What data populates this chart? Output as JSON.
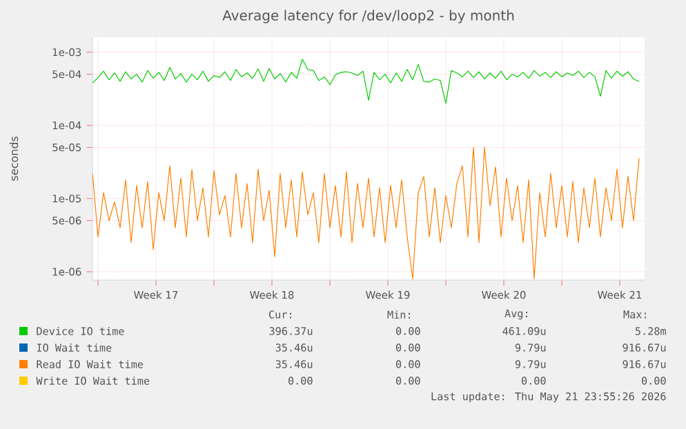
{
  "chart_data": {
    "type": "line",
    "title": "Average latency for /dev/loop2 - by month",
    "ylabel": "seconds",
    "x": [
      "2026-04-18T16:00",
      "2026-04-19T00:00",
      "2026-04-19T08:00",
      "2026-04-19T16:00",
      "2026-04-20T00:00",
      "2026-04-20T08:00",
      "2026-04-20T16:00",
      "2026-04-21T00:00",
      "2026-04-21T08:00",
      "2026-04-21T16:00",
      "2026-04-22T00:00",
      "2026-04-22T08:00",
      "2026-04-22T16:00",
      "2026-04-23T00:00",
      "2026-04-23T08:00",
      "2026-04-23T16:00",
      "2026-04-24T00:00",
      "2026-04-24T08:00",
      "2026-04-24T16:00",
      "2026-04-25T00:00",
      "2026-04-25T08:00",
      "2026-04-25T16:00",
      "2026-04-26T00:00",
      "2026-04-26T08:00",
      "2026-04-26T16:00",
      "2026-04-27T00:00",
      "2026-04-27T08:00",
      "2026-04-27T16:00",
      "2026-04-28T00:00",
      "2026-04-28T08:00",
      "2026-04-28T16:00",
      "2026-04-29T00:00",
      "2026-04-29T08:00",
      "2026-04-29T16:00",
      "2026-04-30T00:00",
      "2026-04-30T08:00",
      "2026-04-30T16:00",
      "2026-05-01T00:00",
      "2026-05-01T08:00",
      "2026-05-01T16:00",
      "2026-05-02T00:00",
      "2026-05-02T08:00",
      "2026-05-02T16:00",
      "2026-05-03T00:00",
      "2026-05-03T08:00",
      "2026-05-03T16:00",
      "2026-05-04T00:00",
      "2026-05-04T08:00",
      "2026-05-04T16:00",
      "2026-05-05T00:00",
      "2026-05-05T08:00",
      "2026-05-05T16:00",
      "2026-05-06T00:00",
      "2026-05-06T08:00",
      "2026-05-06T16:00",
      "2026-05-07T00:00",
      "2026-05-07T08:00",
      "2026-05-07T16:00",
      "2026-05-08T00:00",
      "2026-05-08T08:00",
      "2026-05-08T16:00",
      "2026-05-09T00:00",
      "2026-05-09T08:00",
      "2026-05-09T16:00",
      "2026-05-10T00:00",
      "2026-05-10T08:00",
      "2026-05-10T16:00",
      "2026-05-11T00:00",
      "2026-05-11T08:00",
      "2026-05-11T16:00",
      "2026-05-12T00:00",
      "2026-05-12T08:00",
      "2026-05-12T16:00",
      "2026-05-13T00:00",
      "2026-05-13T08:00",
      "2026-05-13T16:00",
      "2026-05-14T00:00",
      "2026-05-14T08:00",
      "2026-05-14T16:00",
      "2026-05-15T00:00",
      "2026-05-15T08:00",
      "2026-05-15T16:00",
      "2026-05-16T00:00",
      "2026-05-16T08:00",
      "2026-05-16T16:00",
      "2026-05-17T00:00",
      "2026-05-17T08:00",
      "2026-05-17T16:00",
      "2026-05-18T00:00",
      "2026-05-18T08:00",
      "2026-05-18T16:00",
      "2026-05-19T00:00",
      "2026-05-19T08:00",
      "2026-05-19T16:00",
      "2026-05-20T00:00",
      "2026-05-20T08:00",
      "2026-05-20T16:00",
      "2026-05-21T00:00",
      "2026-05-21T08:00",
      "2026-05-21T16:00"
    ],
    "series": [
      {
        "name": "Device IO time",
        "color": "#00cc00",
        "values": [
          0.00038,
          0.00045,
          0.00055,
          0.00042,
          0.00052,
          0.0004,
          0.00054,
          0.00043,
          0.0005,
          0.00039,
          0.00056,
          0.00044,
          0.00053,
          0.00041,
          0.00062,
          0.00043,
          0.00051,
          0.00039,
          0.0005,
          0.00042,
          0.00055,
          0.0004,
          0.00048,
          0.00045,
          0.00054,
          0.00041,
          0.00058,
          0.00046,
          0.00052,
          0.00044,
          0.00059,
          0.0004,
          0.0006,
          0.00043,
          0.00051,
          0.00039,
          0.00053,
          0.00044,
          0.0008,
          0.00058,
          0.00056,
          0.00041,
          0.00046,
          0.00036,
          0.00049,
          0.00053,
          0.00054,
          0.00052,
          0.00048,
          0.00055,
          0.00022,
          0.00053,
          0.00042,
          0.0005,
          0.00038,
          0.00052,
          0.0004,
          0.00058,
          0.00042,
          0.00068,
          0.0004,
          0.00039,
          0.00043,
          0.00041,
          0.0002,
          0.00056,
          0.00052,
          0.00046,
          0.00055,
          0.00045,
          0.00054,
          0.00043,
          0.00052,
          0.00044,
          0.00055,
          0.00042,
          0.0005,
          0.00046,
          0.00053,
          0.00044,
          0.00056,
          0.00047,
          0.00053,
          0.00045,
          0.00054,
          0.00046,
          0.00052,
          0.00048,
          0.00055,
          0.00045,
          0.00053,
          0.00046,
          0.00025,
          0.00056,
          0.00044,
          0.00055,
          0.00047,
          0.00054,
          0.00043,
          0.000396
        ]
      },
      {
        "name": "IO Wait time",
        "color": "#0066b3",
        "values": [
          null,
          null,
          null,
          null,
          null,
          null,
          null,
          null,
          null,
          null,
          null,
          null,
          null,
          null,
          null,
          null,
          null,
          null,
          null,
          null,
          null,
          null,
          null,
          null,
          null,
          null,
          null,
          null,
          null,
          null,
          null,
          null,
          null,
          null,
          null,
          null,
          null,
          null,
          null,
          null,
          null,
          null,
          null,
          null,
          null,
          null,
          null,
          null,
          null,
          null,
          null,
          null,
          null,
          null,
          null,
          null,
          null,
          null,
          null,
          null,
          null,
          null,
          null,
          null,
          null,
          null,
          null,
          null,
          null,
          null,
          null,
          null,
          null,
          null,
          null,
          null,
          null,
          null,
          null,
          null,
          null,
          null,
          null,
          null,
          null,
          null,
          null,
          null,
          null,
          null,
          null,
          null,
          null,
          null,
          null,
          null,
          null,
          null,
          null,
          null
        ]
      },
      {
        "name": "Read IO Wait time",
        "color": "#ff8000",
        "values": [
          2.2e-05,
          3e-06,
          1.2e-05,
          5e-06,
          9e-06,
          4e-06,
          1.8e-05,
          2.5e-06,
          1.5e-05,
          4e-06,
          1.7e-05,
          2e-06,
          1.2e-05,
          5e-06,
          2.8e-05,
          4e-06,
          1.9e-05,
          3e-06,
          2.5e-05,
          5e-06,
          1.4e-05,
          3e-06,
          2.4e-05,
          6e-06,
          1.1e-05,
          3e-06,
          2.2e-05,
          4e-06,
          1.6e-05,
          2.5e-06,
          2.5e-05,
          5e-06,
          1.3e-05,
          1.6e-06,
          2.2e-05,
          4e-06,
          1.8e-05,
          3e-06,
          2.3e-05,
          6e-06,
          1.2e-05,
          2.5e-06,
          2.2e-05,
          4e-06,
          1.5e-05,
          3e-06,
          2.3e-05,
          2.5e-06,
          1.6e-05,
          4e-06,
          1.9e-05,
          3e-06,
          1.4e-05,
          2.5e-06,
          1.5e-05,
          4e-06,
          1.8e-05,
          3e-06,
          8e-07,
          1.2e-05,
          2e-05,
          3e-06,
          1.4e-05,
          2.5e-06,
          1.1e-05,
          4e-06,
          1.6e-05,
          2.8e-05,
          3e-06,
          5e-05,
          2.5e-06,
          5e-05,
          8e-06,
          2.7e-05,
          3e-06,
          1.9e-05,
          5e-06,
          1.5e-05,
          2.5e-06,
          1.8e-05,
          8e-07,
          1.2e-05,
          3e-06,
          2.2e-05,
          4e-06,
          1.5e-05,
          3e-06,
          1.7e-05,
          2.5e-06,
          1.4e-05,
          4e-06,
          1.9e-05,
          3e-06,
          1.4e-05,
          5e-06,
          2.5e-05,
          4e-06,
          2e-05,
          5e-06,
          3.546e-05
        ]
      },
      {
        "name": "Write IO Wait time",
        "color": "#ffcc00",
        "values": [
          null,
          null,
          null,
          null,
          null,
          null,
          null,
          null,
          null,
          null,
          null,
          null,
          null,
          null,
          null,
          null,
          null,
          null,
          null,
          null,
          null,
          null,
          null,
          null,
          null,
          null,
          null,
          null,
          null,
          null,
          null,
          null,
          null,
          null,
          null,
          null,
          null,
          null,
          null,
          null,
          null,
          null,
          null,
          null,
          null,
          null,
          null,
          null,
          null,
          null,
          null,
          null,
          null,
          null,
          null,
          null,
          null,
          null,
          null,
          null,
          null,
          null,
          null,
          null,
          null,
          null,
          null,
          null,
          null,
          null,
          null,
          null,
          null,
          null,
          null,
          null,
          null,
          null,
          null,
          null,
          null,
          null,
          null,
          null,
          null,
          null,
          null,
          null,
          null,
          null,
          null,
          null,
          null,
          null,
          null,
          null,
          null,
          null,
          null,
          null
        ]
      }
    ],
    "xlim": [
      "2026-04-18T16:00",
      "2026-05-22T00:00"
    ],
    "xticks": [
      {
        "value": "2026-04-19",
        "label": null
      },
      {
        "value": "2026-04-22T12:00",
        "label": "Week 17"
      },
      {
        "value": "2026-04-26",
        "label": null
      },
      {
        "value": "2026-04-29T12:00",
        "label": "Week 18"
      },
      {
        "value": "2026-05-03",
        "label": null
      },
      {
        "value": "2026-05-06T12:00",
        "label": "Week 19"
      },
      {
        "value": "2026-05-10",
        "label": null
      },
      {
        "value": "2026-05-13T12:00",
        "label": "Week 20"
      },
      {
        "value": "2026-05-17",
        "label": null
      },
      {
        "value": "2026-05-20T12:00",
        "label": "Week 21"
      }
    ],
    "ylim": [
      7.7e-07,
      0.0016
    ],
    "yticks": [
      {
        "value": 1e-06,
        "label": "1e-06"
      },
      {
        "value": 5e-06,
        "label": "5e-06"
      },
      {
        "value": 1e-05,
        "label": "1e-05"
      },
      {
        "value": 5e-05,
        "label": "5e-05"
      },
      {
        "value": 0.0001,
        "label": "1e-04"
      },
      {
        "value": 0.0005,
        "label": "5e-04"
      },
      {
        "value": 0.001,
        "label": "1e-03"
      }
    ],
    "log": "y",
    "grid": true,
    "legend": "bottom",
    "annotations": [
      "Cur:",
      "Min:",
      "Avg:",
      "Max:",
      "396.37u",
      "0.00",
      "461.09u",
      "5.28m",
      "35.46u",
      "0.00",
      "9.79u",
      "916.67u",
      "35.46u",
      "0.00",
      "9.79u",
      "916.67u",
      "0.00",
      "0.00",
      "0.00",
      "0.00",
      "Last update: Thu May 21 23:55:26 2026"
    ]
  }
}
